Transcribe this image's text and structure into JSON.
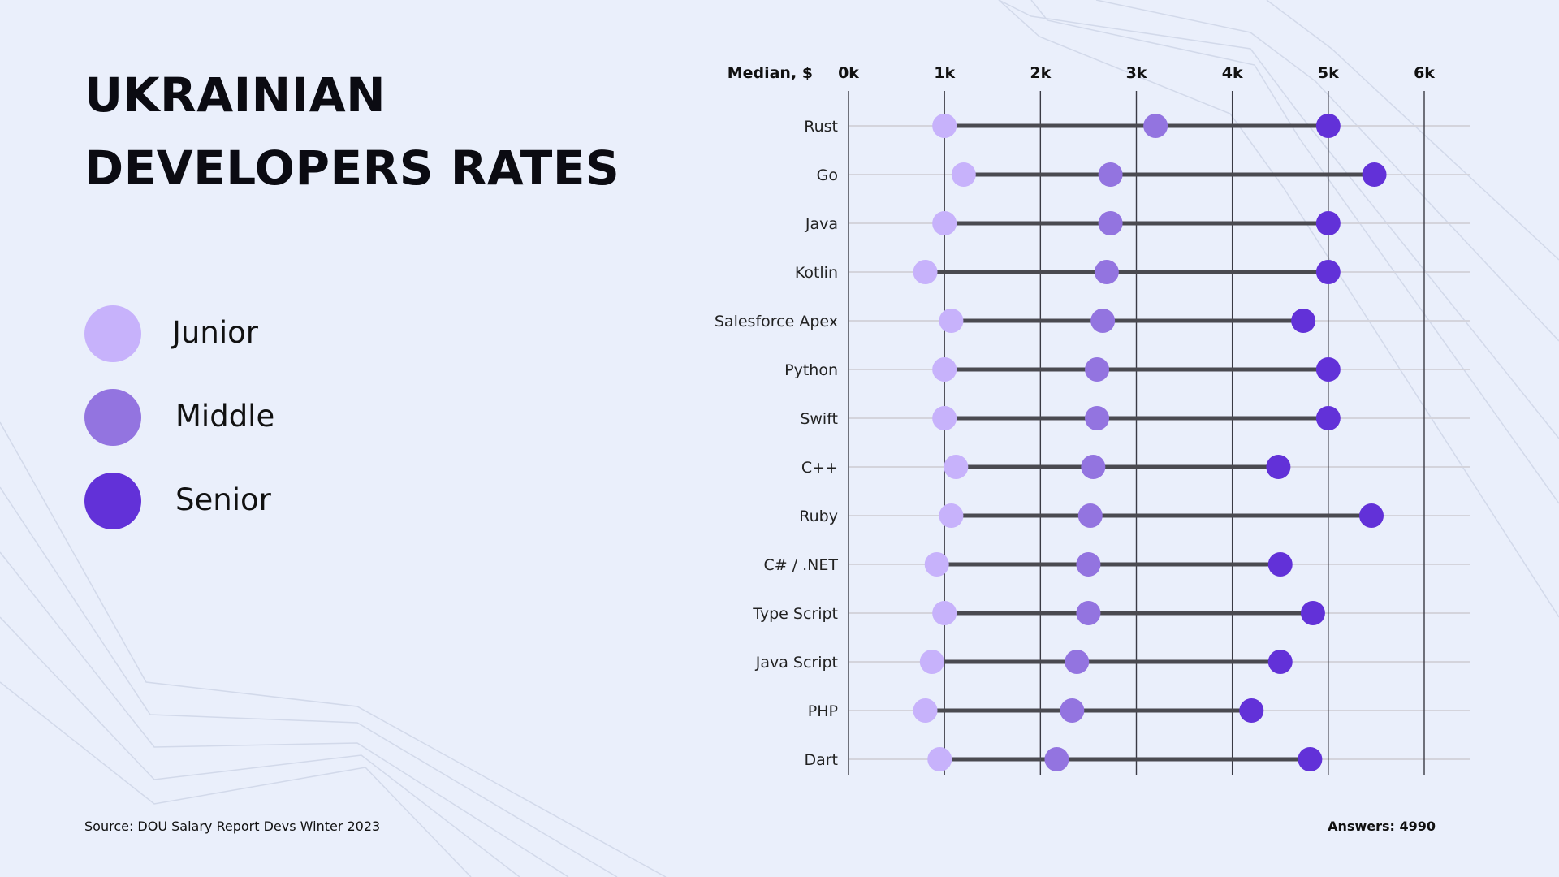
{
  "title_line1": "UKRAINIAN",
  "title_line2": "DEVELOPERS RATES",
  "legend": [
    {
      "label": "Junior",
      "color": "#c7b2fb"
    },
    {
      "label": "Middle",
      "color": "#9374e0"
    },
    {
      "label": "Senior",
      "color": "#6231d8"
    }
  ],
  "footer": {
    "source": "Source: DOU Salary Report Devs Winter 2023",
    "answers": "Answers: 4990"
  },
  "chart_data": {
    "type": "dumbbell",
    "axis_title": "Median, $",
    "x_ticks": [
      "0k",
      "1k",
      "2k",
      "3k",
      "4k",
      "5k",
      "6k"
    ],
    "xlim": [
      0,
      6000
    ],
    "grid": true,
    "categories": [
      "Rust",
      "Go",
      "Java",
      "Kotlin",
      "Salesforce Apex",
      "Python",
      "Swift",
      "C++",
      "Ruby",
      "C# / .NET",
      "Type Script",
      "Java Script",
      "PHP",
      "Dart"
    ],
    "series": [
      {
        "name": "Junior",
        "color": "#c7b2fb",
        "values": [
          1000,
          1200,
          1000,
          800,
          1070,
          1000,
          1000,
          1120,
          1070,
          920,
          1000,
          870,
          800,
          950
        ]
      },
      {
        "name": "Middle",
        "color": "#9374e0",
        "values": [
          3200,
          2730,
          2730,
          2690,
          2650,
          2590,
          2590,
          2550,
          2520,
          2500,
          2500,
          2380,
          2330,
          2170
        ]
      },
      {
        "name": "Senior",
        "color": "#6231d8",
        "values": [
          5000,
          5480,
          5000,
          5000,
          4740,
          5000,
          5000,
          4480,
          5450,
          4500,
          4840,
          4500,
          4200,
          4810
        ]
      }
    ]
  }
}
